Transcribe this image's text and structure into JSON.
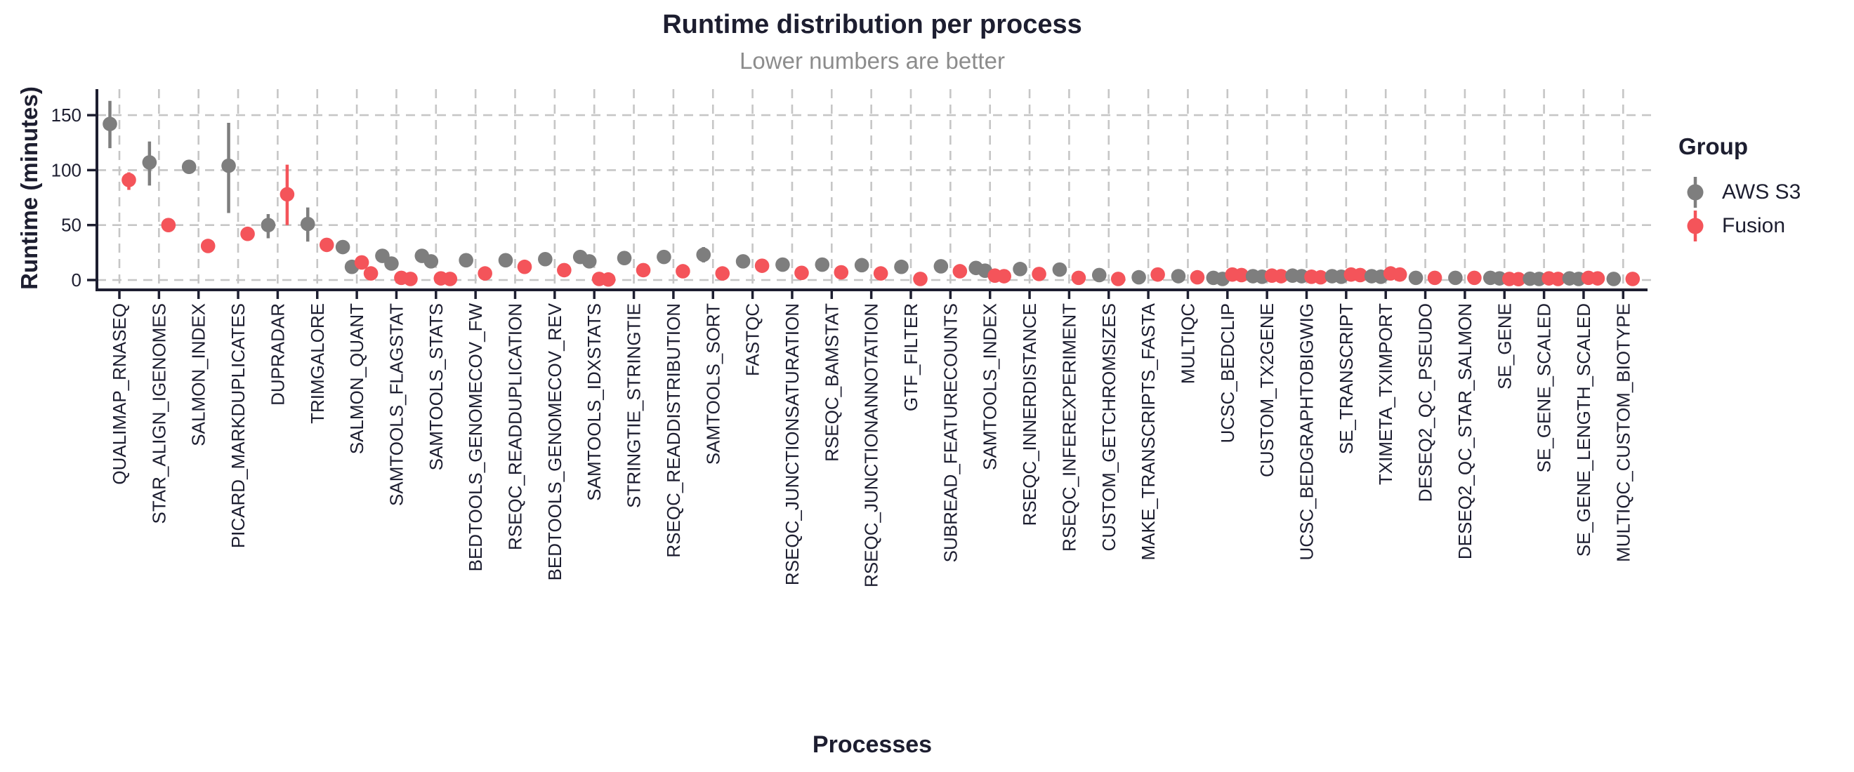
{
  "chart_data": {
    "type": "scatter",
    "title": "Runtime distribution per process",
    "subtitle": "Lower numbers are better",
    "xlabel": "Processes",
    "ylabel": "Runtime (minutes)",
    "ylim": [
      0,
      150
    ],
    "yticks": [
      0,
      50,
      100,
      150
    ],
    "grid": "dashed",
    "legend": {
      "title": "Group",
      "position": "right",
      "series": [
        {
          "name": "AWS S3",
          "color": "#7E7E7E"
        },
        {
          "name": "Fusion",
          "color": "#F4545A"
        }
      ]
    },
    "colors": {
      "text": "#1D1E30",
      "subtitle": "#8C8C8C",
      "axis": "#1D1E30",
      "gridline": "#C6C6C6",
      "aws_s3": "#7E7E7E",
      "fusion": "#F4545A"
    },
    "processes": [
      {
        "name": "QUALIMAP_RNASEQ",
        "aws": [
          142
        ],
        "aws_err": [
          120,
          163
        ],
        "fusion": [
          91
        ],
        "fusion_err": [
          82,
          98
        ]
      },
      {
        "name": "STAR_ALIGN_IGENOMES",
        "aws": [
          107
        ],
        "aws_err": [
          86,
          126
        ],
        "fusion": [
          50
        ],
        "fusion_err": null
      },
      {
        "name": "SALMON_INDEX",
        "aws": [
          103
        ],
        "aws_err": null,
        "fusion": [
          31
        ],
        "fusion_err": null
      },
      {
        "name": "PICARD_MARKDUPLICATES",
        "aws": [
          104
        ],
        "aws_err": [
          61,
          143
        ],
        "fusion": [
          42
        ],
        "fusion_err": null
      },
      {
        "name": "DUPRADAR",
        "aws": [
          50
        ],
        "aws_err": [
          38,
          60
        ],
        "fusion": [
          78
        ],
        "fusion_err": [
          50,
          105
        ]
      },
      {
        "name": "TRIMGALORE",
        "aws": [
          51
        ],
        "aws_err": [
          35,
          66
        ],
        "fusion": [
          32
        ],
        "fusion_err": null
      },
      {
        "name": "SALMON_QUANT",
        "aws": [
          30,
          12
        ],
        "aws_err": null,
        "fusion": [
          16,
          6
        ],
        "fusion_err": null
      },
      {
        "name": "SAMTOOLS_FLAGSTAT",
        "aws": [
          22,
          15
        ],
        "aws_err": null,
        "fusion": [
          2,
          1
        ],
        "fusion_err": null
      },
      {
        "name": "SAMTOOLS_STATS",
        "aws": [
          22,
          17
        ],
        "aws_err": null,
        "fusion": [
          1.5,
          1
        ],
        "fusion_err": null
      },
      {
        "name": "BEDTOOLS_GENOMECOV_FW",
        "aws": [
          18
        ],
        "aws_err": null,
        "fusion": [
          6
        ],
        "fusion_err": null
      },
      {
        "name": "RSEQC_READDUPLICATION",
        "aws": [
          18
        ],
        "aws_err": null,
        "fusion": [
          12
        ],
        "fusion_err": null
      },
      {
        "name": "BEDTOOLS_GENOMECOV_REV",
        "aws": [
          19
        ],
        "aws_err": null,
        "fusion": [
          9
        ],
        "fusion_err": null
      },
      {
        "name": "SAMTOOLS_IDXSTATS",
        "aws": [
          21,
          17
        ],
        "aws_err": null,
        "fusion": [
          1,
          0.5
        ],
        "fusion_err": null
      },
      {
        "name": "STRINGTIE_STRINGTIE",
        "aws": [
          20
        ],
        "aws_err": null,
        "fusion": [
          9
        ],
        "fusion_err": null
      },
      {
        "name": "RSEQC_READDISTRIBUTION",
        "aws": [
          21
        ],
        "aws_err": null,
        "fusion": [
          8
        ],
        "fusion_err": null
      },
      {
        "name": "SAMTOOLS_SORT",
        "aws": [
          23
        ],
        "aws_err": [
          16,
          30
        ],
        "fusion": [
          6
        ],
        "fusion_err": null
      },
      {
        "name": "FASTQC",
        "aws": [
          17
        ],
        "aws_err": null,
        "fusion": [
          13
        ],
        "fusion_err": null
      },
      {
        "name": "RSEQC_JUNCTIONSATURATION",
        "aws": [
          14
        ],
        "aws_err": null,
        "fusion": [
          6.5
        ],
        "fusion_err": null
      },
      {
        "name": "RSEQC_BAMSTAT",
        "aws": [
          14
        ],
        "aws_err": null,
        "fusion": [
          7
        ],
        "fusion_err": null
      },
      {
        "name": "RSEQC_JUNCTIONANNOTATION",
        "aws": [
          13.5
        ],
        "aws_err": null,
        "fusion": [
          6
        ],
        "fusion_err": null
      },
      {
        "name": "GTF_FILTER",
        "aws": [
          12
        ],
        "aws_err": null,
        "fusion": [
          1
        ],
        "fusion_err": null
      },
      {
        "name": "SUBREAD_FEATURECOUNTS",
        "aws": [
          12.5
        ],
        "aws_err": null,
        "fusion": [
          8
        ],
        "fusion_err": null
      },
      {
        "name": "SAMTOOLS_INDEX",
        "aws": [
          11,
          8.5
        ],
        "aws_err": null,
        "fusion": [
          4,
          3.5
        ],
        "fusion_err": null
      },
      {
        "name": "RSEQC_INNERDISTANCE",
        "aws": [
          10
        ],
        "aws_err": null,
        "fusion": [
          5.5
        ],
        "fusion_err": null
      },
      {
        "name": "RSEQC_INFEREXPERIMENT",
        "aws": [
          9.5
        ],
        "aws_err": null,
        "fusion": [
          2
        ],
        "fusion_err": null
      },
      {
        "name": "CUSTOM_GETCHROMSIZES",
        "aws": [
          4.5
        ],
        "aws_err": null,
        "fusion": [
          1
        ],
        "fusion_err": null
      },
      {
        "name": "MAKE_TRANSCRIPTS_FASTA",
        "aws": [
          2.5
        ],
        "aws_err": null,
        "fusion": [
          5
        ],
        "fusion_err": null
      },
      {
        "name": "MULTIQC",
        "aws": [
          3.5
        ],
        "aws_err": null,
        "fusion": [
          2.5
        ],
        "fusion_err": null
      },
      {
        "name": "UCSC_BEDCLIP",
        "aws": [
          2,
          1
        ],
        "aws_err": null,
        "fusion": [
          5,
          4.5
        ],
        "fusion_err": null
      },
      {
        "name": "CUSTOM_TX2GENE",
        "aws": [
          3.5,
          3
        ],
        "aws_err": null,
        "fusion": [
          4,
          3.5
        ],
        "fusion_err": null
      },
      {
        "name": "UCSC_BEDGRAPHTOBIGWIG",
        "aws": [
          4,
          3.5
        ],
        "aws_err": null,
        "fusion": [
          3,
          2.5
        ],
        "fusion_err": null
      },
      {
        "name": "SE_TRANSCRIPT",
        "aws": [
          3.5,
          3
        ],
        "aws_err": null,
        "fusion": [
          5,
          4.5
        ],
        "fusion_err": null
      },
      {
        "name": "TXIMETA_TXIMPORT",
        "aws": [
          3.5,
          3
        ],
        "aws_err": null,
        "fusion": [
          6,
          5
        ],
        "fusion_err": null
      },
      {
        "name": "DESEQ2_QC_PSEUDO",
        "aws": [
          2
        ],
        "aws_err": null,
        "fusion": [
          2
        ],
        "fusion_err": null
      },
      {
        "name": "DESEQ2_QC_STAR_SALMON",
        "aws": [
          2
        ],
        "aws_err": null,
        "fusion": [
          2
        ],
        "fusion_err": null
      },
      {
        "name": "SE_GENE",
        "aws": [
          2,
          1.5
        ],
        "aws_err": null,
        "fusion": [
          1,
          0.8
        ],
        "fusion_err": null
      },
      {
        "name": "SE_GENE_SCALED",
        "aws": [
          1.2,
          1
        ],
        "aws_err": null,
        "fusion": [
          1.5,
          1
        ],
        "fusion_err": null
      },
      {
        "name": "SE_GENE_LENGTH_SCALED",
        "aws": [
          1.5,
          1
        ],
        "aws_err": null,
        "fusion": [
          2,
          1.5
        ],
        "fusion_err": null
      },
      {
        "name": "MULTIQC_CUSTOM_BIOTYPE",
        "aws": [
          1
        ],
        "aws_err": null,
        "fusion": [
          1
        ],
        "fusion_err": null
      }
    ]
  }
}
